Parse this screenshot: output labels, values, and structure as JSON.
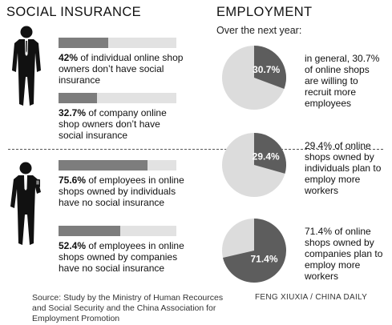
{
  "social": {
    "title": "SOCIAL INSURANCE",
    "items": [
      {
        "pct_text": "42%",
        "rest_text": " of individual online shop owners don’t have social insurance",
        "value": 42.0
      },
      {
        "pct_text": "32.7%",
        "rest_text": " of company online shop owners don’t have social insurance",
        "value": 32.7
      },
      {
        "pct_text": "75.6%",
        "rest_text": " of employees in online shops owned by individuals have no social insurance",
        "value": 75.6
      },
      {
        "pct_text": "52.4%",
        "rest_text": " of employees in online shops owned by companies have no social insurance",
        "value": 52.4
      }
    ]
  },
  "employment": {
    "title": "EMPLOYMENT",
    "subtitle": "Over the next year:",
    "pies": [
      {
        "label": "30.7%",
        "value": 30.7,
        "text": "in general, 30.7% of online shops are willing to recruit more employees"
      },
      {
        "label": "29.4%",
        "value": 29.4,
        "text": "29.4% of online shops owned by individuals plan to employ more workers"
      },
      {
        "label": "71.4%",
        "value": 71.4,
        "text": "71.4% of online shops owned by companies plan to employ more workers"
      }
    ]
  },
  "source": "Source: Study by the Ministry of Human Recources and Social Security and the China Association for Employment Promotion",
  "credit": "FENG XIUXIA / CHINA DAILY",
  "colors": {
    "fill": "#7d7d7d",
    "track": "#e2e2e2",
    "pie_dark": "#5d5d5d",
    "pie_light": "#dcdcdc"
  },
  "icons": {
    "person_top": "businessman-icon",
    "person_bottom": "businessman-with-phone-icon"
  },
  "chart_data": [
    {
      "type": "bar",
      "title": "SOCIAL INSURANCE",
      "categories": [
        "42% of individual online shop owners don’t have social insurance",
        "32.7% of company online shop owners don’t have social insurance",
        "75.6% of employees in online shops owned by individuals have no social insurance",
        "52.4% of employees in online shops owned by companies have no social insurance"
      ],
      "values": [
        42.0,
        32.7,
        75.6,
        52.4
      ],
      "ylim": [
        0,
        100
      ]
    },
    {
      "type": "pie",
      "title": "EMPLOYMENT",
      "subtitle": "Over the next year:",
      "charts": [
        {
          "slices": [
            {
              "label": "30.7%",
              "value": 30.7
            },
            {
              "label": "",
              "value": 69.3
            }
          ]
        },
        {
          "slices": [
            {
              "label": "29.4%",
              "value": 29.4
            },
            {
              "label": "",
              "value": 70.6
            }
          ]
        },
        {
          "slices": [
            {
              "label": "71.4%",
              "value": 71.4
            },
            {
              "label": "",
              "value": 28.6
            }
          ]
        }
      ]
    }
  ]
}
